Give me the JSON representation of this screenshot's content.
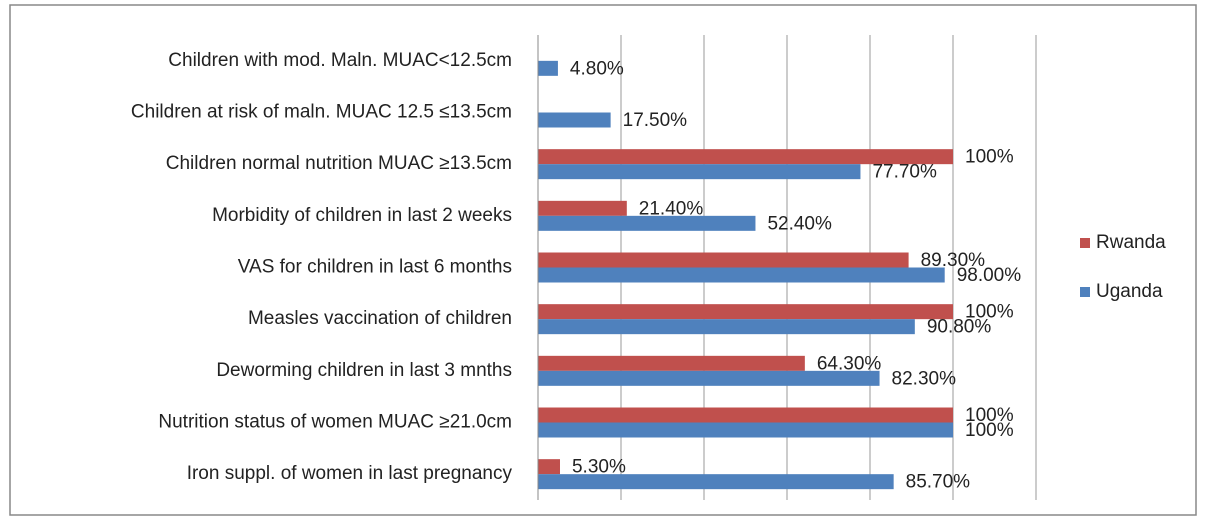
{
  "chart_data": {
    "type": "bar",
    "orientation": "horizontal",
    "categories": [
      "Children with mod. Maln. MUAC<12.5cm",
      "Children at risk of maln. MUAC 12.5 ≤13.5cm",
      "Children   normal nutrition MUAC ≥13.5cm",
      "Morbidity of children in last 2 weeks",
      "VAS for children  in last 6 months",
      "Measles vaccination of children ",
      "Deworming children in last 3 mnths",
      "Nutrition status of women MUAC ≥21.0cm",
      "Iron suppl. of women in last pregnancy"
    ],
    "series": [
      {
        "name": "Rwanda",
        "color": "#c0504d",
        "values": [
          null,
          null,
          100,
          21.4,
          89.3,
          100,
          64.3,
          100,
          5.3
        ],
        "value_labels": [
          null,
          null,
          "100%",
          "21.40%",
          "89.30%",
          "100%",
          "64.30%",
          "100%",
          "5.30%"
        ]
      },
      {
        "name": "Uganda",
        "color": "#4f81bd",
        "values": [
          4.8,
          17.5,
          77.7,
          52.4,
          98.0,
          90.8,
          82.3,
          100,
          85.7
        ],
        "value_labels": [
          "4.80%",
          "17.50%",
          "77.70%",
          "52.40%",
          "98.00%",
          "90.80%",
          "82.30%",
          "100%",
          "85.70%"
        ]
      }
    ],
    "xlim": [
      0,
      120
    ],
    "xticks": [
      0,
      20,
      40,
      60,
      80,
      100,
      120
    ],
    "grid": true,
    "legend": "right"
  }
}
